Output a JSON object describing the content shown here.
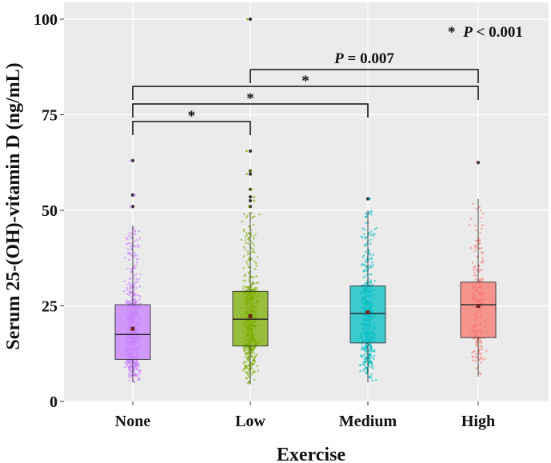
{
  "chart_data": {
    "type": "boxplot",
    "title": "",
    "xlabel": "Exercise",
    "ylabel": "Serum 25-(OH)-vitamin D (ng/mL)",
    "ylim": [
      0,
      100
    ],
    "yticks": [
      0,
      25,
      50,
      75,
      100
    ],
    "grid": true,
    "categories": [
      "None",
      "Low",
      "Medium",
      "High"
    ],
    "series": [
      {
        "name": "None",
        "color": "#c77cff",
        "min": 5,
        "q1": 11,
        "median": 17.5,
        "q3": 25.3,
        "max": 46,
        "mean": 19,
        "outliers": [
          51,
          54,
          54,
          63
        ],
        "n_points": 520
      },
      {
        "name": "Low",
        "color": "#7cae00",
        "min": 4.5,
        "q1": 14.5,
        "median": 21.5,
        "q3": 28.8,
        "max": 49.5,
        "mean": 22.3,
        "outliers": [
          51,
          52.5,
          53.5,
          55.5,
          59.5,
          60.3,
          65.5,
          100
        ],
        "n_points": 560
      },
      {
        "name": "Medium",
        "color": "#00bfc4",
        "min": 5,
        "q1": 15.3,
        "median": 23,
        "q3": 30.2,
        "max": 50,
        "mean": 23.3,
        "outliers": [
          53
        ],
        "n_points": 460
      },
      {
        "name": "High",
        "color": "#f8766d",
        "min": 6.5,
        "q1": 16.7,
        "median": 25.3,
        "q3": 31.2,
        "max": 53,
        "mean": 25,
        "outliers": [
          62.5
        ],
        "n_points": 230
      }
    ],
    "annotations": {
      "legend_note": {
        "star": "*",
        "p": "P",
        "rest": " < 0.001"
      },
      "brackets": [
        {
          "from": "Low",
          "to": "High",
          "label_parts": [
            "P",
            " = 0.007"
          ]
        },
        {
          "from": "None",
          "to": "High",
          "label": "*"
        },
        {
          "from": "None",
          "to": "Medium",
          "label": "*"
        },
        {
          "from": "None",
          "to": "Low",
          "label": "*"
        }
      ]
    }
  }
}
